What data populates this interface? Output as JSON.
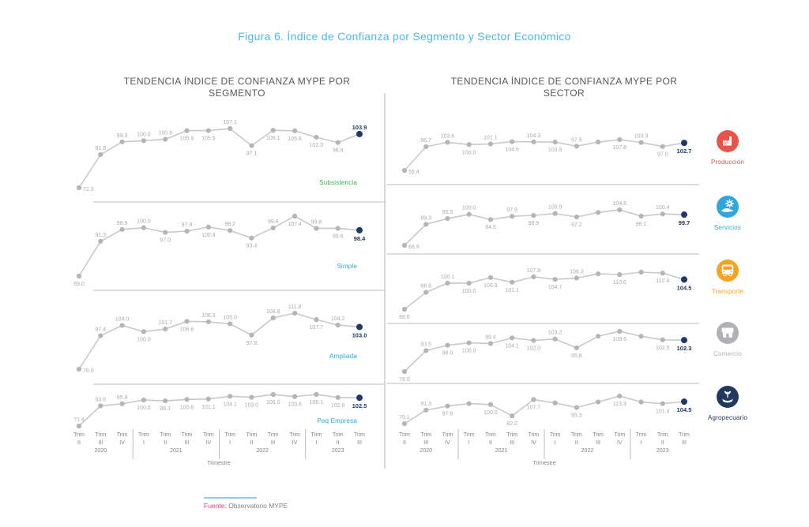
{
  "title": "Figura 6. Índice de Confianza por Segmento y Sector Económico",
  "panel_headers": {
    "segmento": "TENDENCIA ÍNDICE DE CONFIANZA MYPE POR SEGMENTO",
    "sector": "TENDENCIA ÍNDICE DE CONFIANZA MYPE POR SECTOR"
  },
  "axis": {
    "trim_word": "Trim",
    "romans": [
      "II",
      "III",
      "IV",
      "I",
      "II",
      "III",
      "IV",
      "I",
      "II",
      "III",
      "IV",
      "I",
      "II",
      "III"
    ],
    "years": [
      {
        "label": "2020",
        "from": 0,
        "to": 2
      },
      {
        "label": "2021",
        "from": 3,
        "to": 6
      },
      {
        "label": "2022",
        "from": 7,
        "to": 10
      },
      {
        "label": "2023",
        "from": 11,
        "to": 13
      }
    ],
    "xlabel": "Trimestre"
  },
  "chart_data": [
    {
      "type": "line",
      "title": "TENDENCIA ÍNDICE DE CONFIANZA MYPE POR SEGMENTO",
      "xlabel": "Trimestre",
      "x_categories": [
        "Trim II 2020",
        "Trim III 2020",
        "Trim IV 2020",
        "Trim I 2021",
        "Trim II 2021",
        "Trim III 2021",
        "Trim IV 2021",
        "Trim I 2022",
        "Trim II 2022",
        "Trim III 2022",
        "Trim IV 2022",
        "Trim I 2023",
        "Trim II 2023",
        "Trim III 2023"
      ],
      "series": [
        {
          "name": "Subsistencia",
          "name_color": "#39b54a",
          "values": [
            72.3,
            91.8,
            99.3,
            100.0,
            100.8,
            105.9,
            105.9,
            107.1,
            97.1,
            106.1,
            105.8,
            102.0,
            98.9,
            103.9
          ],
          "point_labels": [
            "72.3",
            "91.8",
            "99.3",
            "100.0",
            "100.8",
            "105.9",
            "105.9",
            "107.1",
            "97.1",
            "106.1",
            "105.8",
            "102.0",
            "98.9",
            "103.9"
          ],
          "label_sides": [
            "r",
            "a",
            "a",
            "a",
            "a",
            "b",
            "b",
            "a",
            "b",
            "b",
            "b",
            "b",
            "b",
            "a"
          ]
        },
        {
          "name": "Simple",
          "name_color": "#29a8e0",
          "values": [
            69.0,
            91.3,
            98.9,
            100.0,
            97.0,
            97.8,
            100.4,
            98.2,
            93.4,
            99.9,
            107.4,
            99.6,
            99.6,
            98.4
          ],
          "point_labels": [
            "69.0",
            "91.3",
            "98.9",
            "100.0",
            "97.0",
            "97.8",
            "100.4",
            "98.2",
            "93.4",
            "99.9",
            "107.4",
            "99.6",
            "99.6",
            "98.4"
          ],
          "label_sides": [
            "b",
            "a",
            "a",
            "a",
            "b",
            "a",
            "b",
            "a",
            "b",
            "a",
            "b",
            "a",
            "b",
            "b"
          ]
        },
        {
          "name": "Ampliada",
          "name_color": "#29a8e0",
          "values": [
            76.0,
            97.4,
            104.0,
            100.0,
            101.7,
            106.6,
            106.3,
            105.0,
            97.8,
            108.8,
            111.8,
            107.7,
            104.2,
            103.0
          ],
          "point_labels": [
            "76.0",
            "97.4",
            "104.0",
            "100.0",
            "101.7",
            "106.6",
            "106.3",
            "105.0",
            "97.8",
            "108.8",
            "111.8",
            "107.7",
            "104.2",
            "103.0"
          ],
          "label_sides": [
            "r",
            "a",
            "a",
            "b",
            "a",
            "b",
            "a",
            "a",
            "b",
            "a",
            "a",
            "b",
            "a",
            "b"
          ]
        },
        {
          "name": "Peq Empresa",
          "name_color": "#29a8e0",
          "values": [
            71.4,
            93.6,
            95.9,
            100.0,
            99.1,
            100.6,
            101.1,
            104.1,
            103.0,
            106.0,
            103.8,
            106.1,
            102.8,
            102.5
          ],
          "point_labels": [
            "71.4",
            "93.6",
            "95.9",
            "100.0",
            "99.1",
            "100.6",
            "101.1",
            "104.1",
            "103.0",
            "106.0",
            "103.8",
            "106.1",
            "102.8",
            "102.5"
          ],
          "label_sides": [
            "a",
            "a",
            "a",
            "b",
            "b",
            "b",
            "b",
            "b",
            "b",
            "b",
            "b",
            "b",
            "b",
            "b"
          ]
        }
      ]
    },
    {
      "type": "line",
      "title": "TENDENCIA ÍNDICE DE CONFIANZA MYPE POR SECTOR",
      "xlabel": "Trimestre",
      "x_categories": [
        "Trim II 2020",
        "Trim III 2020",
        "Trim IV 2020",
        "Trim I 2021",
        "Trim II 2021",
        "Trim III 2021",
        "Trim IV 2021",
        "Trim I 2022",
        "Trim II 2022",
        "Trim III 2022",
        "Trim IV 2022",
        "Trim I 2023",
        "Trim II 2023",
        "Trim III 2023"
      ],
      "series": [
        {
          "name": "Producción",
          "name_color": "#e8544a",
          "icon": "factory-icon",
          "values": [
            59.4,
            96.7,
            103.6,
            100.0,
            101.1,
            104.6,
            104.3,
            103.9,
            97.5,
            104.0,
            107.8,
            103.3,
            97.0,
            102.7
          ],
          "point_labels": [
            "59.4",
            "96.7",
            "103.6",
            "100.0",
            "101.1",
            "104.6",
            "104.3",
            "103.9",
            "97.5",
            null,
            "107.8",
            "103.3",
            "97.0",
            "102.7"
          ],
          "label_sides": [
            "r",
            "a",
            "a",
            "b",
            "a",
            "b",
            "a",
            "b",
            "a",
            null,
            "b",
            "a",
            "b",
            "b"
          ]
        },
        {
          "name": "Servicios",
          "name_color": "#2fa6dc",
          "icon": "hand-gear-icon",
          "values": [
            66.9,
            89.3,
            95.5,
            100.0,
            94.5,
            97.9,
            98.9,
            100.9,
            97.2,
            102.0,
            104.8,
            98.1,
            100.4,
            99.7
          ],
          "point_labels": [
            "66.9",
            "89.3",
            "95.5",
            "100.0",
            "94.5",
            "97.9",
            "98.9",
            "100.9",
            "97.2",
            null,
            "104.8",
            "98.1",
            "100.4",
            "99.7"
          ],
          "label_sides": [
            "r",
            "a",
            "a",
            "a",
            "b",
            "a",
            "b",
            "a",
            "b",
            null,
            "a",
            "b",
            "a",
            "b"
          ]
        },
        {
          "name": "Transporte",
          "name_color": "#f3a51f",
          "icon": "bus-icon",
          "values": [
            68.0,
            88.8,
            100.1,
            100.0,
            106.9,
            101.1,
            107.8,
            104.7,
            106.3,
            111.5,
            110.6,
            113.5,
            112.4,
            104.5
          ],
          "point_labels": [
            "68.0",
            "88.8",
            "100.1",
            "100.0",
            "106.9",
            "101.1",
            "107.8",
            "104.7",
            "106.3",
            null,
            "110.6",
            null,
            "112.4",
            "104.5"
          ],
          "label_sides": [
            "b",
            "a",
            "a",
            "b",
            "b",
            "b",
            "a",
            "b",
            "a",
            null,
            "b",
            null,
            "b",
            "b"
          ]
        },
        {
          "name": "Comercio",
          "name_color": "#b0b1b3",
          "icon": "store-icon",
          "values": [
            76.0,
            93.5,
            98.0,
            100.0,
            99.4,
            104.1,
            102.0,
            103.2,
            95.8,
            105.5,
            109.6,
            105.5,
            102.5,
            102.3
          ],
          "point_labels": [
            "76.0",
            "93.5",
            "98.0",
            "100.0",
            "99.4",
            "104.1",
            "102.0",
            "103.2",
            "95.8",
            null,
            "109.6",
            null,
            "102.5",
            "102.3"
          ],
          "label_sides": [
            "b",
            "a",
            "b",
            "b",
            "a",
            "b",
            "b",
            "a",
            "b",
            null,
            "b",
            null,
            "b",
            "b"
          ]
        },
        {
          "name": "Agropecuario",
          "name_color": "#21395c",
          "icon": "plant-hand-icon",
          "values": [
            70.1,
            91.3,
            97.6,
            101.5,
            100.0,
            82.2,
            107.7,
            102.5,
            95.3,
            104.0,
            113.3,
            104.0,
            101.4,
            104.5
          ],
          "point_labels": [
            "70.1",
            "91.3",
            "97.6",
            null,
            "100.0",
            "82.2",
            "107.7",
            null,
            "95.3",
            null,
            "113.3",
            null,
            "101.4",
            "104.5"
          ],
          "label_sides": [
            "a",
            "a",
            "b",
            null,
            "b",
            "b",
            "b",
            null,
            "b",
            null,
            "b",
            null,
            "b",
            "b"
          ]
        }
      ]
    }
  ],
  "footer": {
    "source_label": "Fuente:",
    "source_text": " Observatorio MYPE"
  },
  "colors": {
    "title_blue": "#4db9e8",
    "header_gray": "#57585a",
    "line_gray": "#c8c9ca",
    "dot_gray": "#b4b5b7",
    "value_label_gray": "#a8aaad",
    "final_navy": "#1f3864",
    "axis_text_gray": "#808285",
    "separator_gray": "#bcbdbf",
    "footer_label_pink": "#ee3d7c",
    "footer_text_gray": "#808285",
    "footer_line_blue": "#8fcbe8"
  }
}
